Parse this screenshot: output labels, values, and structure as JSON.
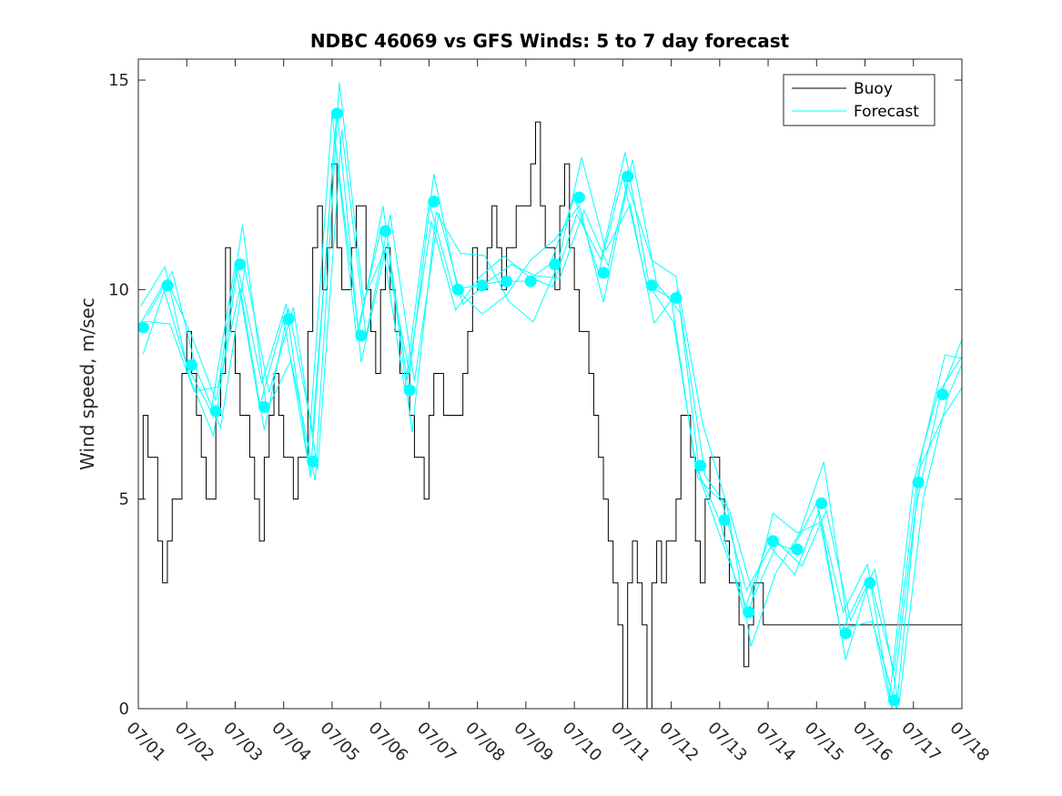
{
  "chart_data": {
    "type": "line",
    "title": "NDBC 46069 vs GFS Winds: 5 to 7 day forecast",
    "xlabel": "",
    "ylabel": "Wind speed, m/sec",
    "xlim": [
      0,
      17
    ],
    "ylim": [
      0,
      15.5
    ],
    "x_ticks": [
      0,
      1,
      2,
      3,
      4,
      5,
      6,
      7,
      8,
      9,
      10,
      11,
      12,
      13,
      14,
      15,
      16,
      17
    ],
    "x_tick_labels": [
      "07/01",
      "07/02",
      "07/03",
      "07/04",
      "07/05",
      "07/06",
      "07/07",
      "07/08",
      "07/09",
      "07/10",
      "07/11",
      "07/12",
      "07/13",
      "07/14",
      "07/15",
      "07/16",
      "07/17",
      "07/18"
    ],
    "y_ticks": [
      0,
      5,
      10,
      15
    ],
    "y_tick_labels": [
      "0",
      "5",
      "10",
      "15"
    ],
    "grid": false,
    "legend": {
      "position": "top-right",
      "entries": [
        "Buoy",
        "Forecast"
      ]
    },
    "colors": {
      "buoy": "#000000",
      "forecast": "#00ffff"
    },
    "series": [
      {
        "name": "Buoy",
        "x": [
          0,
          0.1,
          0.2,
          0.3,
          0.4,
          0.5,
          0.6,
          0.7,
          0.8,
          0.9,
          1.0,
          1.1,
          1.2,
          1.3,
          1.4,
          1.5,
          1.6,
          1.7,
          1.8,
          1.9,
          2.0,
          2.1,
          2.2,
          2.3,
          2.4,
          2.5,
          2.6,
          2.7,
          2.8,
          2.9,
          3.0,
          3.1,
          3.2,
          3.3,
          3.4,
          3.5,
          3.6,
          3.7,
          3.8,
          3.9,
          4.0,
          4.1,
          4.2,
          4.3,
          4.4,
          4.5,
          4.6,
          4.7,
          4.8,
          4.9,
          5.0,
          5.1,
          5.2,
          5.3,
          5.4,
          5.5,
          5.6,
          5.7,
          5.8,
          5.9,
          6.0,
          6.1,
          6.2,
          6.3,
          6.4,
          6.5,
          6.6,
          6.7,
          6.8,
          6.9,
          7.0,
          7.1,
          7.2,
          7.3,
          7.4,
          7.5,
          7.6,
          7.7,
          7.8,
          7.9,
          8.0,
          8.1,
          8.2,
          8.3,
          8.4,
          8.5,
          8.6,
          8.7,
          8.8,
          8.9,
          9.0,
          9.1,
          9.2,
          9.3,
          9.4,
          9.5,
          9.6,
          9.7,
          9.8,
          9.9,
          10.0,
          10.1,
          10.2,
          10.3,
          10.4,
          10.5,
          10.6,
          10.7,
          10.8,
          10.9,
          11.0,
          11.1,
          11.2,
          11.3,
          11.4,
          11.5,
          11.6,
          11.7,
          11.8,
          11.9,
          12.0,
          12.1,
          12.2,
          12.3,
          12.4,
          12.5,
          12.6,
          12.7,
          12.8,
          12.9,
          13.0,
          13.1,
          13.2,
          13.3,
          13.4,
          13.5,
          13.6,
          13.7,
          13.8,
          13.9,
          14.0,
          14.1,
          14.2,
          14.3,
          14.4,
          14.5,
          14.6,
          14.7,
          14.8,
          14.9,
          15.0,
          15.1,
          15.2,
          15.3,
          15.4,
          15.5,
          15.6,
          15.7,
          15.8,
          15.9,
          16.0,
          16.1,
          16.2,
          16.3,
          16.4,
          16.5,
          16.6,
          16.7,
          16.8,
          16.9,
          17.0
        ],
        "values": [
          5,
          7,
          6,
          6,
          4,
          3,
          4,
          5,
          5,
          8,
          9,
          8,
          7,
          6,
          5,
          5,
          7,
          8,
          11,
          9,
          8,
          7,
          7,
          6,
          5,
          4,
          6,
          7,
          8,
          7,
          6,
          6,
          5,
          6,
          6,
          9,
          11,
          12,
          10,
          11,
          13,
          11,
          10,
          10,
          11,
          12,
          12,
          10,
          9,
          8,
          10,
          11,
          10,
          9,
          8,
          8,
          7,
          6,
          6,
          5,
          7,
          8,
          8,
          7,
          7,
          7,
          7,
          8,
          9,
          11,
          10,
          10,
          11,
          12,
          11,
          10,
          11,
          11,
          12,
          12,
          12,
          13,
          14,
          12,
          11,
          11,
          10,
          12,
          13,
          11,
          10,
          9,
          9,
          8,
          7,
          6,
          5,
          4,
          3,
          2,
          0,
          3,
          4,
          3,
          2,
          0,
          3,
          4,
          3,
          4,
          4,
          5,
          7,
          7,
          6,
          4,
          3,
          5,
          6,
          6,
          5,
          4,
          3,
          3,
          2,
          1,
          2,
          3,
          3,
          2,
          2,
          2,
          2,
          2,
          2,
          2,
          2,
          2,
          2,
          2,
          2,
          2,
          2,
          2,
          2,
          2,
          2,
          2,
          2,
          2,
          2,
          2,
          2,
          2,
          2,
          2,
          2,
          2,
          2,
          2,
          2,
          2,
          2,
          2,
          2,
          2,
          2,
          2,
          2,
          2,
          2
        ]
      },
      {
        "name": "Forecast",
        "x": [
          0,
          0.5,
          1,
          1.5,
          2,
          2.5,
          3,
          3.5,
          4,
          4.5,
          5,
          5.5,
          6,
          6.5,
          7,
          7.5,
          8,
          8.5,
          9,
          9.5,
          10,
          10.5,
          11,
          11.5,
          12,
          12.5,
          13,
          13.5,
          14,
          14.5,
          15,
          15.5,
          16,
          16.5,
          17
        ],
        "values": [
          9.1,
          10.1,
          8.2,
          7.1,
          10.6,
          7.2,
          9.3,
          5.9,
          14.2,
          8.9,
          11.4,
          7.6,
          12.1,
          10.0,
          10.1,
          10.2,
          10.2,
          10.6,
          12.2,
          10.4,
          12.7,
          10.1,
          9.8,
          5.8,
          4.5,
          2.3,
          4.0,
          3.8,
          4.9,
          1.8,
          3.0,
          0.2,
          5.4,
          7.5,
          8.4
        ]
      }
    ],
    "forecast_markers": {
      "x": [
        0.1,
        0.6,
        1.1,
        1.6,
        2.1,
        2.6,
        3.1,
        3.6,
        4.1,
        4.6,
        5.1,
        5.6,
        6.1,
        6.6,
        7.1,
        7.6,
        8.1,
        8.6,
        9.1,
        9.6,
        10.1,
        10.6,
        11.1,
        11.6,
        12.1,
        12.6,
        13.1,
        13.6,
        14.1,
        14.6,
        15.1,
        15.6,
        16.1,
        16.6
      ],
      "values": [
        9.1,
        10.1,
        8.2,
        7.1,
        10.6,
        7.2,
        9.3,
        5.9,
        14.2,
        8.9,
        11.4,
        7.6,
        12.1,
        10.0,
        10.1,
        10.2,
        10.2,
        10.6,
        12.2,
        10.4,
        12.7,
        10.1,
        9.8,
        5.8,
        4.5,
        2.3,
        4.0,
        3.8,
        4.9,
        1.8,
        3.0,
        0.2,
        5.4,
        7.5
      ]
    }
  }
}
